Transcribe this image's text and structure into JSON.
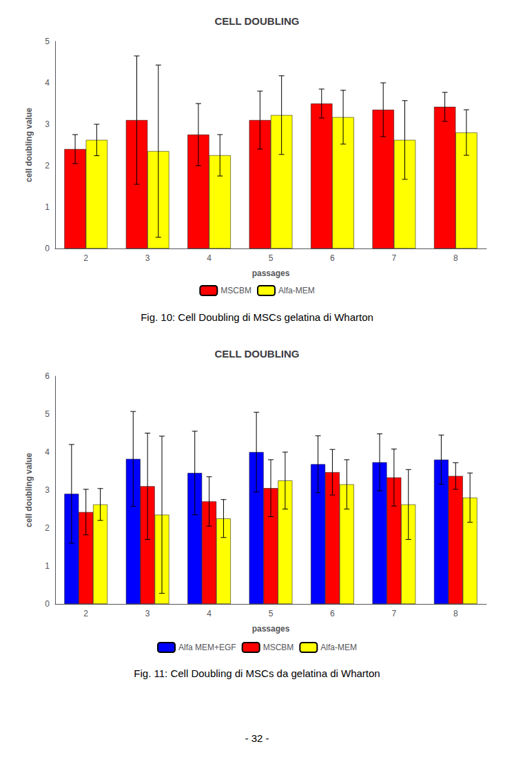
{
  "chart_data": [
    {
      "type": "bar",
      "title": "CELL DOUBLING",
      "x_label": "passages",
      "y_label": "cell doubling value",
      "categories": [
        2,
        3,
        4,
        5,
        6,
        7,
        8
      ],
      "series": [
        {
          "name": "MSCBM",
          "color": "#ff0000",
          "values": [
            2.4,
            3.1,
            2.75,
            3.1,
            3.5,
            3.35,
            3.42
          ],
          "errors": [
            0.35,
            1.55,
            0.75,
            0.7,
            0.35,
            0.65,
            0.35
          ]
        },
        {
          "name": "Alfa-MEM",
          "color": "#ffff00",
          "values": [
            2.62,
            2.35,
            2.25,
            3.22,
            3.17,
            2.62,
            2.8
          ],
          "errors": [
            0.38,
            2.08,
            0.5,
            0.95,
            0.65,
            0.95,
            0.55
          ]
        }
      ],
      "ylim": [
        0,
        5
      ],
      "yticks": [
        0,
        1,
        2,
        3,
        4,
        5
      ],
      "grid": false,
      "annotations": [
        "Fig. 10: Cell Doubling di MSCs gelatina di Wharton"
      ]
    },
    {
      "type": "bar",
      "title": "CELL DOUBLING",
      "x_label": "passages",
      "y_label": "cell doubling value",
      "categories": [
        2,
        3,
        4,
        5,
        6,
        7,
        8
      ],
      "series": [
        {
          "name": "Alfa MEM+EGF",
          "color": "#0000ff",
          "values": [
            2.9,
            3.82,
            3.45,
            4.0,
            3.68,
            3.73,
            3.8
          ],
          "errors": [
            1.3,
            1.25,
            1.1,
            1.05,
            0.75,
            0.75,
            0.65
          ]
        },
        {
          "name": "MSCBM",
          "color": "#ff0000",
          "values": [
            2.42,
            3.1,
            2.7,
            3.05,
            3.47,
            3.33,
            3.37
          ],
          "errors": [
            0.6,
            1.4,
            0.65,
            0.75,
            0.6,
            0.75,
            0.35
          ]
        },
        {
          "name": "Alfa-MEM",
          "color": "#ffff00",
          "values": [
            2.62,
            2.35,
            2.25,
            3.25,
            3.15,
            2.62,
            2.8
          ],
          "errors": [
            0.42,
            2.07,
            0.5,
            0.75,
            0.65,
            0.92,
            0.65
          ]
        }
      ],
      "ylim": [
        0,
        6
      ],
      "yticks": [
        0,
        1,
        2,
        3,
        4,
        5,
        6
      ],
      "grid": false,
      "annotations": [
        "Fig. 11: Cell Doubling di MSCs da gelatina di Wharton"
      ]
    }
  ],
  "annotations": [
    "- 32 -"
  ]
}
